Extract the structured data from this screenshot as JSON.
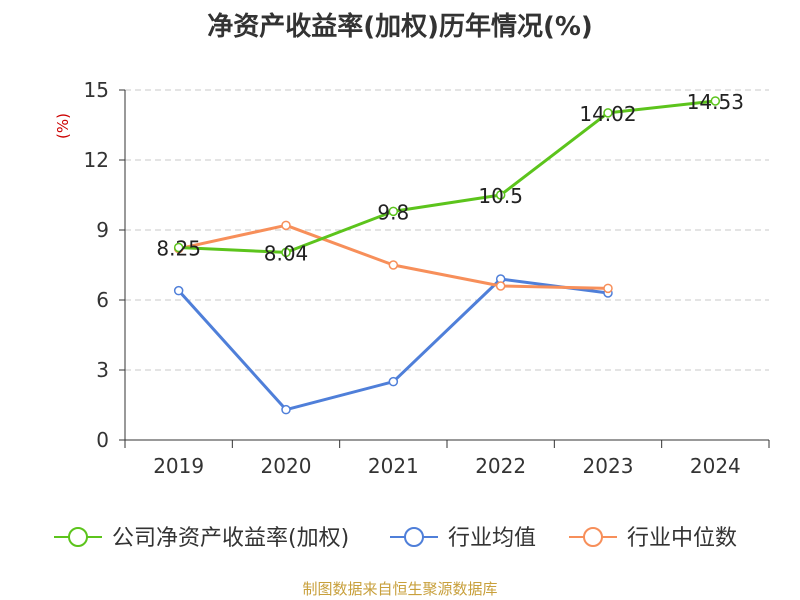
{
  "chart_data": {
    "type": "line",
    "title": "净资产收益率(加权)历年情况(%)",
    "ylabel": "(%)",
    "xlabel": "",
    "categories": [
      "2019",
      "2020",
      "2021",
      "2022",
      "2023",
      "2024"
    ],
    "ylim": [
      0,
      15
    ],
    "yticks": [
      0,
      3,
      6,
      9,
      12,
      15
    ],
    "grid": true,
    "legend_position": "bottom",
    "series": [
      {
        "name": "公司净资产收益率(加权)",
        "color": "#5cc41c",
        "values": [
          8.25,
          8.04,
          9.8,
          10.5,
          14.02,
          14.53
        ],
        "labels": [
          "8.25",
          "8.04",
          "9.8",
          "10.5",
          "14.02",
          "14.53"
        ]
      },
      {
        "name": "行业均值",
        "color": "#4f7fd9",
        "values": [
          6.4,
          1.3,
          2.5,
          6.9,
          6.3,
          null
        ]
      },
      {
        "name": "行业中位数",
        "color": "#f78f5a",
        "values": [
          8.2,
          9.2,
          7.5,
          6.6,
          6.5,
          null
        ]
      }
    ]
  },
  "footer": {
    "source": "制图数据来自恒生聚源数据库"
  }
}
